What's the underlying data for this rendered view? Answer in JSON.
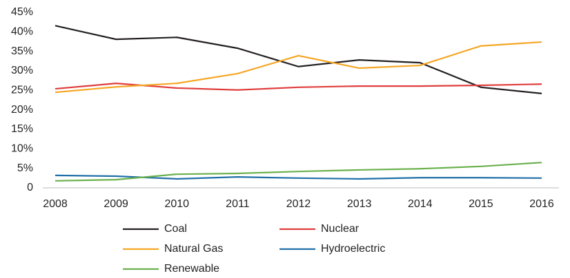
{
  "chart_data": {
    "type": "line",
    "categories": [
      "2008",
      "2009",
      "2010",
      "2011",
      "2012",
      "2013",
      "2014",
      "2015",
      "2016"
    ],
    "series": [
      {
        "name": "Coal",
        "color": "#231f20",
        "values": [
          41.6,
          38.1,
          38.6,
          35.8,
          31.1,
          32.8,
          32.1,
          25.8,
          24.2
        ]
      },
      {
        "name": "Nuclear",
        "color": "#e03c3c",
        "values": [
          25.4,
          26.8,
          25.6,
          25.1,
          25.8,
          26.1,
          26.1,
          26.3,
          26.6
        ]
      },
      {
        "name": "Natural Gas",
        "color": "#f5a623",
        "values": [
          24.5,
          25.9,
          26.8,
          29.3,
          33.9,
          30.7,
          31.4,
          36.4,
          37.4
        ]
      },
      {
        "name": "Hydroelectric",
        "color": "#1f6fa8",
        "values": [
          3.2,
          3.0,
          2.3,
          2.8,
          2.5,
          2.3,
          2.6,
          2.6,
          2.5
        ]
      },
      {
        "name": "Renewable",
        "color": "#6ab04c",
        "values": [
          1.8,
          2.1,
          3.5,
          3.7,
          4.2,
          4.6,
          4.9,
          5.5,
          6.5
        ]
      }
    ],
    "ylim": [
      0,
      45
    ],
    "yticks": [
      0,
      {
        "value": 5,
        "label": "5%"
      },
      {
        "value": 10,
        "label": "10%"
      },
      {
        "value": 15,
        "label": "15%"
      },
      {
        "value": 20,
        "label": "20%"
      },
      {
        "value": 25,
        "label": "25%"
      },
      {
        "value": 30,
        "label": "30%"
      },
      {
        "value": 35,
        "label": "35%"
      },
      {
        "value": 40,
        "label": "40%"
      },
      {
        "value": 45,
        "label": "45%"
      }
    ],
    "grid": false
  }
}
